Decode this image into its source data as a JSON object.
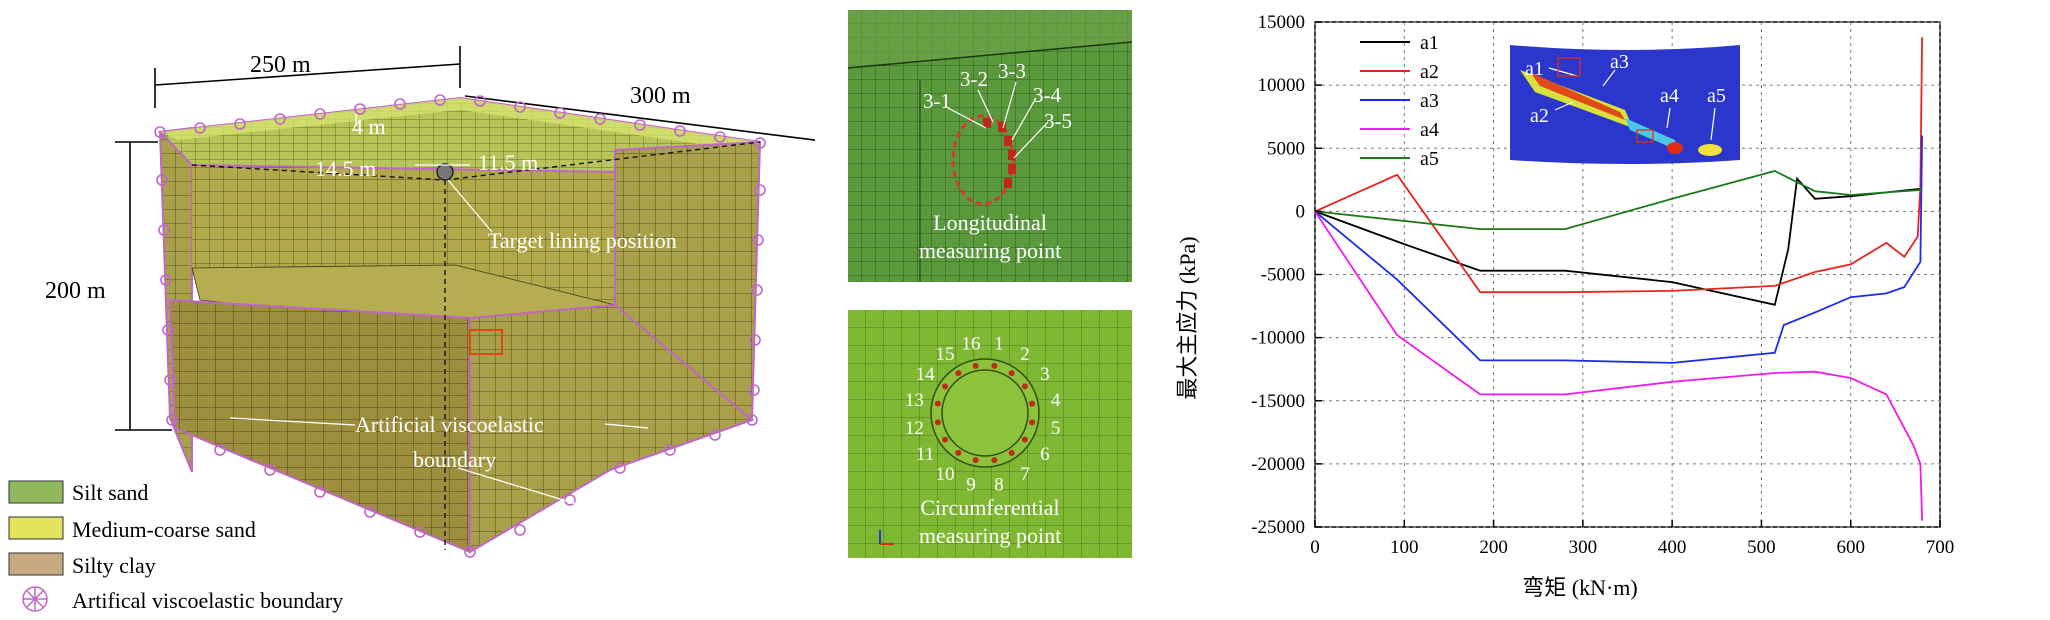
{
  "model": {
    "dim_width": "250 m",
    "dim_depth": "300 m",
    "dim_height": "200 m",
    "dim_4m": "4 m",
    "dim_14_5m": "14.5 m",
    "dim_11_5m": "11.5 m",
    "target_label": "Target lining position",
    "boundary_label_line1": "Artificial viscoelastic",
    "boundary_label_line2": "boundary",
    "legend": [
      {
        "label": "Silt sand",
        "color": "#8fb95a"
      },
      {
        "label": "Medium-coarse sand",
        "color": "#e3e35c"
      },
      {
        "label": "Silty clay",
        "color": "#c8aa80"
      },
      {
        "label": "Artifical viscoelastic boundary",
        "color": "#c066c8"
      }
    ]
  },
  "longitudinal": {
    "caption_line1": "Longitudinal",
    "caption_line2": "measuring point",
    "points": [
      "3-1",
      "3-2",
      "3-3",
      "3-4",
      "3-5"
    ]
  },
  "circumferential": {
    "caption_line1": "Circumferential",
    "caption_line2": "measuring point",
    "points": [
      "1",
      "2",
      "3",
      "4",
      "5",
      "6",
      "7",
      "8",
      "9",
      "10",
      "11",
      "12",
      "13",
      "14",
      "15",
      "16"
    ]
  },
  "inset_labels": [
    "a1",
    "a2",
    "a3",
    "a4",
    "a5"
  ],
  "chart_data": {
    "type": "line",
    "xlabel": "弯矩 (kN·m)",
    "ylabel": "最大主应力 (kPa)",
    "xlim": [
      0,
      700
    ],
    "ylim": [
      -25000,
      15000
    ],
    "xticks": [
      0,
      100,
      200,
      300,
      400,
      500,
      600,
      700
    ],
    "yticks": [
      15000,
      10000,
      5000,
      0,
      -5000,
      -10000,
      -15000,
      -20000,
      -25000
    ],
    "legend_position": "top-left",
    "series": [
      {
        "name": "a1",
        "color": "#000000",
        "x": [
          0,
          100,
          185,
          280,
          400,
          515,
          530,
          540,
          560,
          600,
          640,
          680
        ],
        "y": [
          0,
          -2600,
          -4700,
          -4700,
          -5600,
          -7400,
          -3000,
          2600,
          1000,
          1200,
          1500,
          1800
        ]
      },
      {
        "name": "a2",
        "color": "#e8241c",
        "x": [
          0,
          92,
          185,
          280,
          400,
          515,
          560,
          600,
          640,
          660,
          675,
          678,
          680
        ],
        "y": [
          0,
          2900,
          -6400,
          -6400,
          -6300,
          -5900,
          -4800,
          -4200,
          -2500,
          -3600,
          -2000,
          2000,
          13800
        ]
      },
      {
        "name": "a3",
        "color": "#1c2ce8",
        "x": [
          0,
          92,
          185,
          280,
          400,
          515,
          525,
          560,
          600,
          640,
          660,
          678,
          680
        ],
        "y": [
          0,
          -5400,
          -11800,
          -11800,
          -12000,
          -11200,
          -9000,
          -8000,
          -6800,
          -6500,
          -6000,
          -4000,
          6000
        ]
      },
      {
        "name": "a4",
        "color": "#ee1cee",
        "x": [
          0,
          92,
          185,
          280,
          400,
          515,
          560,
          600,
          640,
          670,
          678,
          680
        ],
        "y": [
          0,
          -9800,
          -14500,
          -14500,
          -13500,
          -12800,
          -12700,
          -13200,
          -14500,
          -18500,
          -20000,
          -24500
        ]
      },
      {
        "name": "a5",
        "color": "#1c7a1c",
        "x": [
          0,
          185,
          280,
          400,
          515,
          560,
          600,
          640,
          680
        ],
        "y": [
          0,
          -1400,
          -1400,
          1000,
          3200,
          1600,
          1300,
          1500,
          1700
        ]
      }
    ]
  }
}
